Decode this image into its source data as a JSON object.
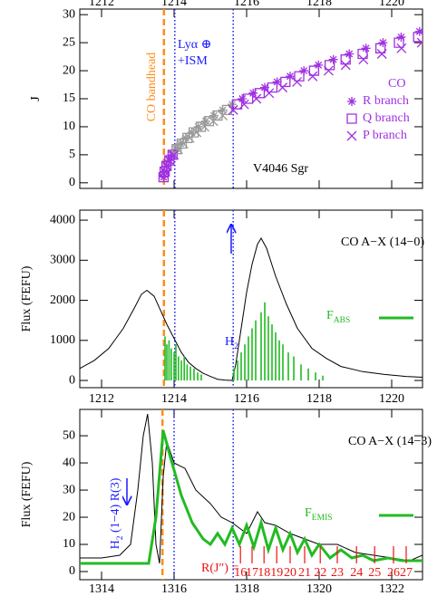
{
  "chart_data": [
    {
      "type": "scatter",
      "ylabel": "J",
      "xlim": [
        1211.4,
        1220.85
      ],
      "xticks": [
        1212,
        1214,
        1216,
        1218,
        1220
      ],
      "ylim": [
        -1,
        31
      ],
      "yticks": [
        0,
        5,
        10,
        15,
        20,
        25,
        30
      ],
      "xtick_position": "top",
      "legend_title": "CO",
      "absorbed_color": "#999999",
      "vlines": [
        {
          "x": 1213.72,
          "color": "#ff8c1a",
          "style": "dashed"
        },
        {
          "x": 1214.02,
          "color": "#1a1aff",
          "style": "dotted"
        },
        {
          "x": 1215.63,
          "color": "#1a1aff",
          "style": "dotted"
        }
      ],
      "annotations": {
        "bandhead": "CO bandhead",
        "lya": "Lyα ⊕",
        "ism": "+ISM",
        "target": "V4046 Sgr"
      },
      "series": [
        {
          "name": "R branch",
          "marker": "asterisk",
          "color": "#a030e0",
          "x": [
            1213.71,
            1213.74,
            1213.79,
            1213.86,
            1213.94,
            1214.05,
            1214.18,
            1214.32,
            1214.49,
            1214.67,
            1214.87,
            1215.1,
            1215.34,
            1215.6,
            1215.88,
            1216.18,
            1216.5,
            1216.84,
            1217.2,
            1217.58,
            1217.98,
            1218.39,
            1218.83,
            1219.29,
            1219.76,
            1220.26,
            1220.77
          ],
          "values": [
            1,
            2,
            3,
            4,
            5,
            6,
            7,
            8,
            9,
            10,
            11,
            12,
            13,
            14,
            15,
            16,
            17,
            18,
            19,
            20,
            21,
            22,
            23,
            24,
            25,
            26,
            27
          ]
        },
        {
          "name": "Q branch",
          "marker": "square",
          "color": "#a030e0",
          "x": [
            1213.71,
            1213.74,
            1213.79,
            1213.87,
            1213.96,
            1214.07,
            1214.21,
            1214.37,
            1214.54,
            1214.74,
            1214.96,
            1215.2,
            1215.46,
            1215.74,
            1216.04,
            1216.36,
            1216.71,
            1217.07,
            1217.45,
            1217.86,
            1218.29,
            1218.73,
            1219.2,
            1219.69,
            1220.2,
            1220.73
          ],
          "values": [
            1,
            2,
            3,
            4,
            5,
            6,
            7,
            8,
            9,
            10,
            11,
            12,
            13,
            14,
            15,
            16,
            17,
            18,
            19,
            20,
            21,
            22,
            23,
            24,
            25,
            26
          ]
        },
        {
          "name": "P branch",
          "marker": "cross",
          "color": "#a030e0",
          "x": [
            1213.75,
            1213.8,
            1213.88,
            1213.99,
            1214.11,
            1214.26,
            1214.43,
            1214.62,
            1214.84,
            1215.08,
            1215.34,
            1215.63,
            1215.93,
            1216.27,
            1216.62,
            1216.99,
            1217.39,
            1217.82,
            1218.26,
            1218.73,
            1219.22,
            1219.73,
            1220.27,
            1220.83
          ],
          "values": [
            2,
            3,
            4,
            5,
            6,
            7,
            8,
            9,
            10,
            11,
            12,
            13,
            14,
            15,
            16,
            17,
            18,
            19,
            20,
            21,
            22,
            23,
            24,
            25
          ]
        }
      ]
    },
    {
      "type": "line",
      "ylabel": "Flux (FEFU)",
      "xlim": [
        1211.4,
        1220.85
      ],
      "xticks": [
        1212,
        1214,
        1216,
        1218,
        1220
      ],
      "ylim": [
        -180,
        4250
      ],
      "yticks": [
        0,
        1000,
        2000,
        3000,
        4000
      ],
      "vlines": [
        {
          "x": 1213.72,
          "color": "#ff8c1a",
          "style": "dashed"
        },
        {
          "x": 1214.02,
          "color": "#1a1aff",
          "style": "dotted"
        },
        {
          "x": 1215.63,
          "color": "#1a1aff",
          "style": "dotted"
        }
      ],
      "annotations": {
        "band": "CO A−X (14−0)",
        "h2": {
          "label": "H",
          "subscript": "2"
        }
      },
      "spectrum": {
        "color": "#000000",
        "x": [
          1211.4,
          1211.8,
          1212.2,
          1212.6,
          1212.9,
          1213.1,
          1213.25,
          1213.45,
          1213.65,
          1213.8,
          1214.0,
          1214.2,
          1214.4,
          1214.6,
          1214.8,
          1215.0,
          1215.2,
          1215.4,
          1215.6,
          1215.7,
          1215.85,
          1216.0,
          1216.15,
          1216.3,
          1216.4,
          1216.55,
          1216.8,
          1217.1,
          1217.4,
          1217.8,
          1218.2,
          1218.6,
          1219.2,
          1219.8,
          1220.4,
          1220.85
        ],
        "values": [
          300,
          500,
          800,
          1300,
          1800,
          2150,
          2250,
          2100,
          1700,
          1400,
          1050,
          700,
          450,
          300,
          180,
          100,
          30,
          10,
          0,
          400,
          1300,
          2200,
          2900,
          3400,
          3550,
          3300,
          2600,
          1900,
          1300,
          800,
          550,
          350,
          220,
          150,
          100,
          80
        ]
      },
      "model": {
        "style": "sticks",
        "color": "#22bb22",
        "legend": {
          "label": "F",
          "subscript": "ABS"
        },
        "x": [
          1213.75,
          1213.8,
          1213.86,
          1213.92,
          1214.0,
          1214.05,
          1214.12,
          1214.2,
          1214.28,
          1214.36,
          1214.45,
          1214.55,
          1214.65,
          1214.75,
          1215.65,
          1215.75,
          1215.85,
          1215.95,
          1216.05,
          1216.15,
          1216.25,
          1216.4,
          1216.5,
          1216.6,
          1216.7,
          1216.8,
          1216.9,
          1217.0,
          1217.15,
          1217.3,
          1217.5,
          1217.7,
          1217.9,
          1218.1
        ],
        "values": [
          1100,
          900,
          1000,
          800,
          700,
          900,
          600,
          500,
          600,
          400,
          350,
          300,
          200,
          150,
          300,
          500,
          700,
          900,
          1100,
          1300,
          1500,
          1700,
          1950,
          1600,
          1400,
          1200,
          1000,
          900,
          700,
          600,
          400,
          300,
          200,
          120
        ]
      }
    },
    {
      "type": "line",
      "ylabel": "Flux (FEFU)",
      "xlim": [
        1313.4,
        1322.85
      ],
      "xticks": [
        1314,
        1316,
        1318,
        1320,
        1322
      ],
      "ylim": [
        -3,
        59.7
      ],
      "yticks": [
        0,
        10,
        20,
        30,
        40,
        50
      ],
      "vlines": [
        {
          "x": 1315.68,
          "color": "#ff8c1a",
          "style": "dashed"
        },
        {
          "x": 1316.0,
          "color": "#1a1aff",
          "style": "dotted"
        },
        {
          "x": 1317.63,
          "color": "#1a1aff",
          "style": "dotted"
        }
      ],
      "annotations": {
        "band": "CO A−X (14−3)",
        "h2": {
          "label": "H",
          "subscript": "2",
          "rest": " (1−4) R(3)"
        }
      },
      "spectrum": {
        "color": "#000000",
        "x": [
          1313.4,
          1314,
          1314.5,
          1314.8,
          1315.0,
          1315.15,
          1315.27,
          1315.4,
          1315.5,
          1315.6,
          1315.7,
          1315.8,
          1316.0,
          1316.3,
          1316.6,
          1317.0,
          1317.3,
          1317.6,
          1318.0,
          1318.3,
          1318.5,
          1318.8,
          1319.2,
          1319.6,
          1320,
          1320.5,
          1321,
          1321.5,
          1322,
          1322.5,
          1322.85
        ],
        "values": [
          5,
          5,
          6,
          10,
          30,
          50,
          58,
          40,
          10,
          3,
          35,
          48,
          40,
          38,
          30,
          25,
          20,
          18,
          14,
          22,
          18,
          17,
          14,
          12,
          10,
          10,
          7,
          6,
          5,
          4,
          6
        ]
      },
      "model": {
        "style": "line",
        "color": "#22bb22",
        "legend": {
          "label": "F",
          "subscript": "EMIS"
        },
        "x": [
          1313.4,
          1315.3,
          1315.5,
          1315.7,
          1315.9,
          1316.2,
          1316.5,
          1316.8,
          1317.0,
          1317.2,
          1317.4,
          1317.6,
          1317.8,
          1318.0,
          1318.2,
          1318.4,
          1318.6,
          1318.8,
          1319.0,
          1319.2,
          1319.4,
          1319.6,
          1319.8,
          1320.0,
          1320.3,
          1320.6,
          1320.9,
          1321.2,
          1321.5,
          1321.9,
          1322.3,
          1322.85
        ],
        "values": [
          3,
          3,
          20,
          52,
          42,
          28,
          18,
          12,
          10,
          14,
          10,
          16,
          10,
          17,
          9,
          18,
          8,
          16,
          8,
          14,
          7,
          12,
          6,
          10,
          5,
          8,
          5,
          6,
          4,
          5,
          4,
          4
        ]
      },
      "r_lines": {
        "label": "R(J″) =",
        "color": "#ee1111",
        "J": [
          16,
          17,
          18,
          19,
          20,
          21,
          22,
          23,
          24,
          25,
          26,
          27
        ],
        "x": [
          1317.83,
          1318.15,
          1318.48,
          1318.83,
          1319.2,
          1319.6,
          1320.03,
          1320.5,
          1321.03,
          1321.53,
          1322.05,
          1322.4
        ]
      }
    }
  ]
}
